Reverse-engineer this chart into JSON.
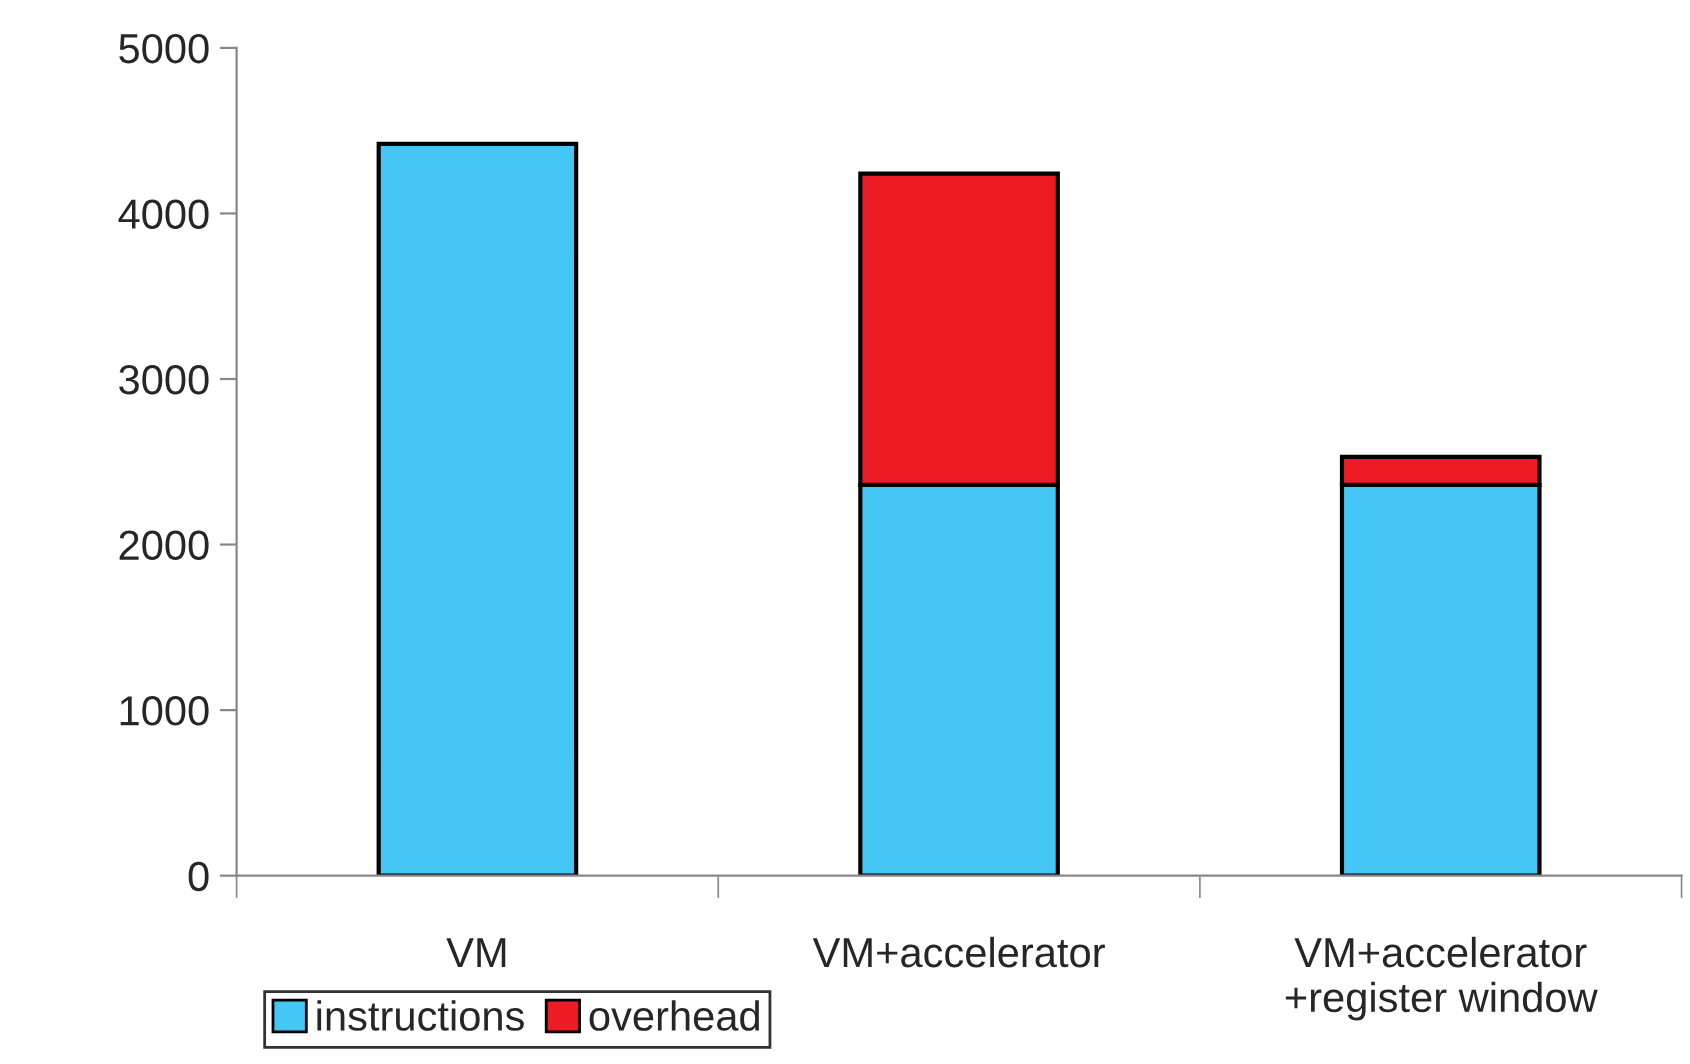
{
  "chart_data": {
    "type": "bar",
    "stacked": true,
    "categories": [
      "VM",
      "VM+accelerator",
      "VM+accelerator\n+register window"
    ],
    "series": [
      {
        "name": "instructions",
        "color": "#44c7f4",
        "values": [
          4420,
          2360,
          2360
        ]
      },
      {
        "name": "overhead",
        "color": "#ed1c24",
        "values": [
          0,
          1880,
          170
        ]
      }
    ],
    "ylim": [
      0,
      5000
    ],
    "yticks": [
      0,
      1000,
      2000,
      3000,
      4000,
      5000
    ],
    "grid": false,
    "legend": "bottom"
  }
}
